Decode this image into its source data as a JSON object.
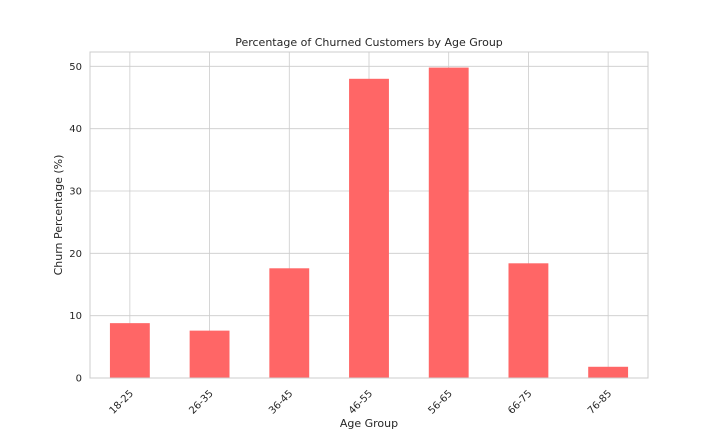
{
  "chart_data": {
    "type": "bar",
    "title": "Percentage of Churned Customers by Age Group",
    "xlabel": "Age Group",
    "ylabel": "Churn Percentage (%)",
    "categories": [
      "18-25",
      "26-35",
      "36-45",
      "46-55",
      "56-65",
      "66-75",
      "76-85"
    ],
    "values": [
      8.8,
      7.6,
      17.6,
      48.0,
      49.8,
      18.4,
      1.8
    ],
    "ylim": [
      0,
      52.3
    ],
    "yticks": [
      0,
      10,
      20,
      30,
      40,
      50
    ],
    "grid": true,
    "bar_color": "#ff6666"
  }
}
